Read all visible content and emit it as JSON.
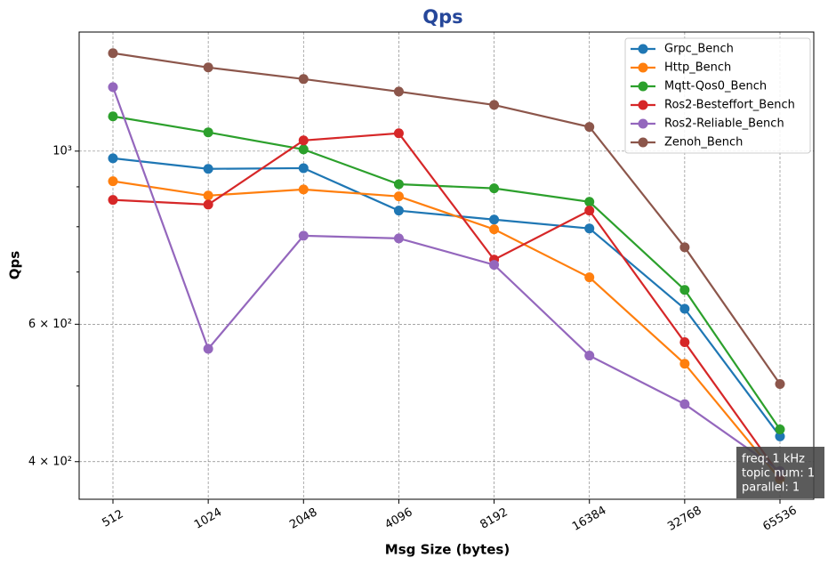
{
  "chart_data": {
    "type": "line",
    "title": "Qps",
    "x_label": "Msg Size (bytes)",
    "y_label": "Qps",
    "categories": [
      "512",
      "1024",
      "2048",
      "4096",
      "8192",
      "16384",
      "32768",
      "65536"
    ],
    "y_scale": "log",
    "ylim": [
      358,
      1421
    ],
    "yticks": [
      {
        "value": 400,
        "label": "4 × 10²"
      },
      {
        "value": 600,
        "label": "6 × 10²"
      },
      {
        "value": 1000,
        "label": "10³"
      }
    ],
    "yminorticks": [
      500,
      700,
      800,
      900
    ],
    "grid": true,
    "legend": "upper right",
    "series": [
      {
        "name": "Grpc_Bench",
        "color": "#1f77b4",
        "values": [
          979,
          949,
          951,
          839,
          817,
          796,
          628,
          431
        ]
      },
      {
        "name": "Http_Bench",
        "color": "#ff7f0e",
        "values": [
          915,
          877,
          893,
          875,
          794,
          689,
          534,
          380
        ]
      },
      {
        "name": "Mqtt-Qos0_Bench",
        "color": "#2ca02c",
        "values": [
          1108,
          1057,
          1005,
          907,
          896,
          861,
          664,
          440
        ]
      },
      {
        "name": "Ros2-Besteffort_Bench",
        "color": "#d62728",
        "values": [
          866,
          854,
          1032,
          1054,
          726,
          839,
          569,
          384
        ]
      },
      {
        "name": "Ros2-Reliable_Bench",
        "color": "#9467bd",
        "values": [
          1208,
          558,
          779,
          773,
          715,
          547,
          474,
          389
        ]
      },
      {
        "name": "Zenoh_Bench",
        "color": "#8c564b",
        "values": [
          1335,
          1280,
          1237,
          1192,
          1146,
          1074,
          753,
          503
        ]
      }
    ],
    "annotation": [
      "freq: 1 kHz",
      "topic num: 1",
      "parallel: 1"
    ]
  }
}
